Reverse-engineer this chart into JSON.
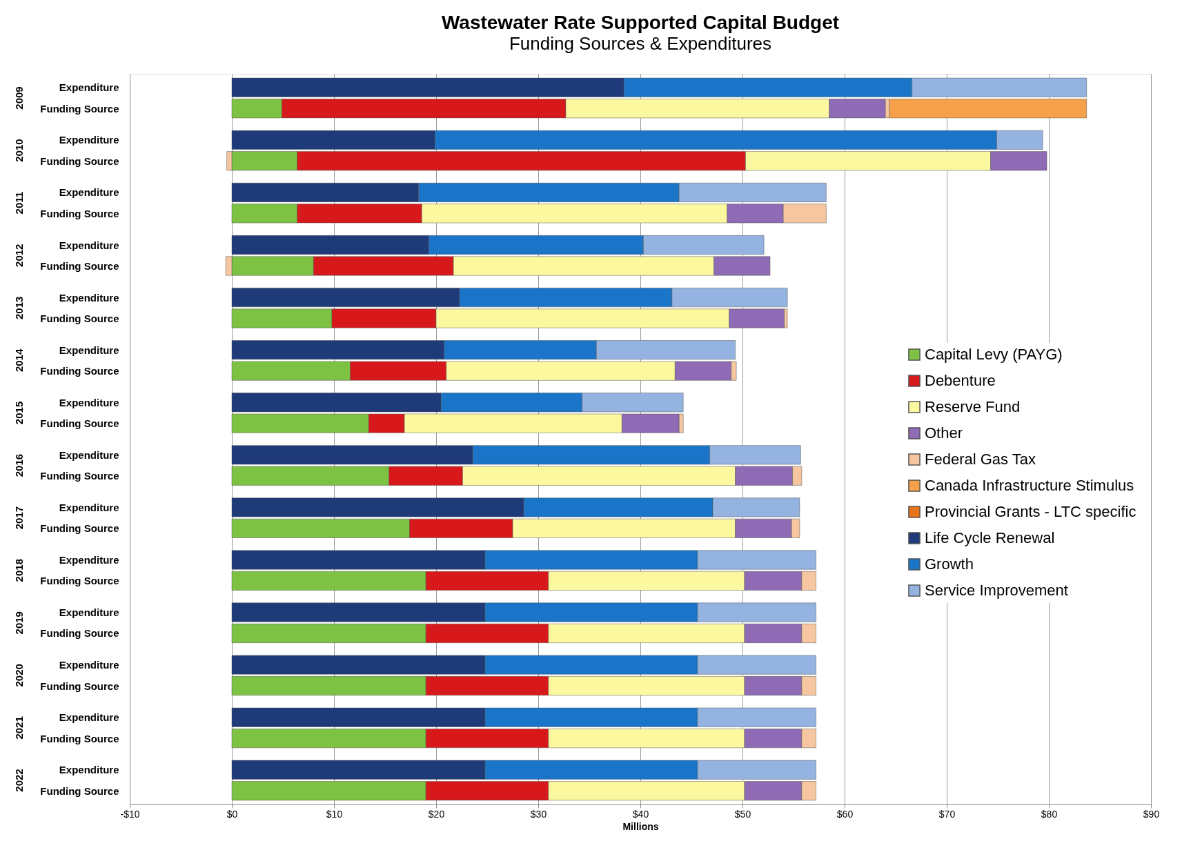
{
  "chart_data": {
    "type": "bar",
    "orientation": "horizontal",
    "stacked": true,
    "title": "Wastewater Rate Supported Capital Budget",
    "subtitle": "Funding Sources & Expenditures",
    "xlabel": "Millions",
    "categories": [
      "Expenditure",
      "Funding Source",
      "Expenditure",
      "Funding Source",
      "Expenditure",
      "Funding Source",
      "Expenditure",
      "Funding Source",
      "Expenditure",
      "Funding Source",
      "Expenditure",
      "Funding Source",
      "Expenditure",
      "Funding Source",
      "Expenditure",
      "Funding Source",
      "Expenditure",
      "Funding Source",
      "Expenditure",
      "Funding Source",
      "Expenditure",
      "Funding Source",
      "Expenditure",
      "Funding Source",
      "Expenditure",
      "Funding Source",
      "Expenditure",
      "Funding Source"
    ],
    "annotations": [
      "2009",
      "2010",
      "2011",
      "2012",
      "2013",
      "2014",
      "2015",
      "2016",
      "2017",
      "2018",
      "2019",
      "2020",
      "2021",
      "2022"
    ],
    "xlim": [
      -10,
      90
    ],
    "xticks": [
      {
        "value": -10,
        "label": "-$10"
      },
      {
        "value": 0,
        "label": "$0"
      },
      {
        "value": 10,
        "label": "$10"
      },
      {
        "value": 20,
        "label": "$20"
      },
      {
        "value": 30,
        "label": "$30"
      },
      {
        "value": 40,
        "label": "$40"
      },
      {
        "value": 50,
        "label": "$50"
      },
      {
        "value": 60,
        "label": "$60"
      },
      {
        "value": 70,
        "label": "$70"
      },
      {
        "value": 80,
        "label": "$80"
      },
      {
        "value": 90,
        "label": "$90"
      }
    ],
    "grid": "x",
    "legend": "right",
    "series": [
      {
        "name": "Capital Levy (PAYG)",
        "color": "#7dc242",
        "values": [
          null,
          4.9,
          null,
          6.4,
          null,
          6.4,
          null,
          8.0,
          null,
          9.8,
          null,
          11.6,
          null,
          13.4,
          null,
          15.4,
          null,
          17.4,
          null,
          19.0,
          null,
          19.0,
          null,
          19.0,
          null,
          19.0,
          null,
          19.0
        ]
      },
      {
        "name": "Debenture",
        "color": "#d7191c",
        "values": [
          null,
          27.8,
          null,
          43.9,
          null,
          12.2,
          null,
          13.7,
          null,
          10.2,
          null,
          9.4,
          null,
          3.5,
          null,
          7.2,
          null,
          10.1,
          null,
          12.0,
          null,
          12.0,
          null,
          12.0,
          null,
          12.0,
          null,
          12.0
        ]
      },
      {
        "name": "Reserve Fund",
        "color": "#fbf8a0",
        "values": [
          null,
          25.8,
          null,
          24.0,
          null,
          29.9,
          null,
          25.5,
          null,
          28.7,
          null,
          22.4,
          null,
          21.3,
          null,
          26.7,
          null,
          21.8,
          null,
          19.2,
          null,
          19.2,
          null,
          19.2,
          null,
          19.2,
          null,
          19.2
        ]
      },
      {
        "name": "Other",
        "color": "#8e6bb4",
        "values": [
          null,
          5.5,
          null,
          5.5,
          null,
          5.5,
          null,
          5.5,
          null,
          5.4,
          null,
          5.5,
          null,
          5.6,
          null,
          5.6,
          null,
          5.5,
          null,
          5.6,
          null,
          5.6,
          null,
          5.6,
          null,
          5.6,
          null,
          5.6
        ]
      },
      {
        "name": "Federal Gas Tax",
        "color": "#f5c6a0",
        "values": [
          null,
          0.4,
          null,
          -0.5,
          null,
          4.2,
          null,
          -0.6,
          null,
          0.3,
          null,
          0.5,
          null,
          0.4,
          null,
          0.9,
          null,
          0.8,
          null,
          1.4,
          null,
          1.4,
          null,
          1.4,
          null,
          1.4,
          null,
          1.4
        ]
      },
      {
        "name": "Canada Infrastructure Stimulus",
        "color": "#f5a04a",
        "values": [
          null,
          19.3,
          null,
          null,
          null,
          null,
          null,
          null,
          null,
          null,
          null,
          null,
          null,
          null,
          null,
          null,
          null,
          null,
          null,
          null,
          null,
          null,
          null,
          null,
          null,
          null,
          null,
          null
        ]
      },
      {
        "name": "Provincial Grants - LTC specific",
        "color": "#e8741a",
        "values": [
          null,
          null,
          null,
          null,
          null,
          null,
          null,
          null,
          null,
          null,
          null,
          null,
          null,
          null,
          null,
          null,
          null,
          null,
          null,
          null,
          null,
          null,
          null,
          null,
          null,
          null,
          null,
          null
        ]
      },
      {
        "name": "Life Cycle Renewal",
        "color": "#1f3a78",
        "values": [
          38.4,
          null,
          19.9,
          null,
          18.3,
          null,
          19.3,
          null,
          22.3,
          null,
          20.8,
          null,
          20.5,
          null,
          23.6,
          null,
          28.6,
          null,
          24.8,
          null,
          24.8,
          null,
          24.8,
          null,
          24.8,
          null,
          24.8,
          null
        ]
      },
      {
        "name": "Growth",
        "color": "#1a75c9",
        "values": [
          28.2,
          null,
          55.0,
          null,
          25.5,
          null,
          21.0,
          null,
          20.8,
          null,
          14.9,
          null,
          13.8,
          null,
          23.2,
          null,
          18.5,
          null,
          20.8,
          null,
          20.8,
          null,
          20.8,
          null,
          20.8,
          null,
          20.8,
          null
        ]
      },
      {
        "name": "Service Improvement",
        "color": "#95b3e0",
        "values": [
          17.1,
          null,
          4.5,
          null,
          14.4,
          null,
          11.8,
          null,
          11.3,
          null,
          13.6,
          null,
          9.9,
          null,
          8.9,
          null,
          8.5,
          null,
          11.6,
          null,
          11.6,
          null,
          11.6,
          null,
          11.6,
          null,
          11.6,
          null
        ]
      }
    ]
  }
}
